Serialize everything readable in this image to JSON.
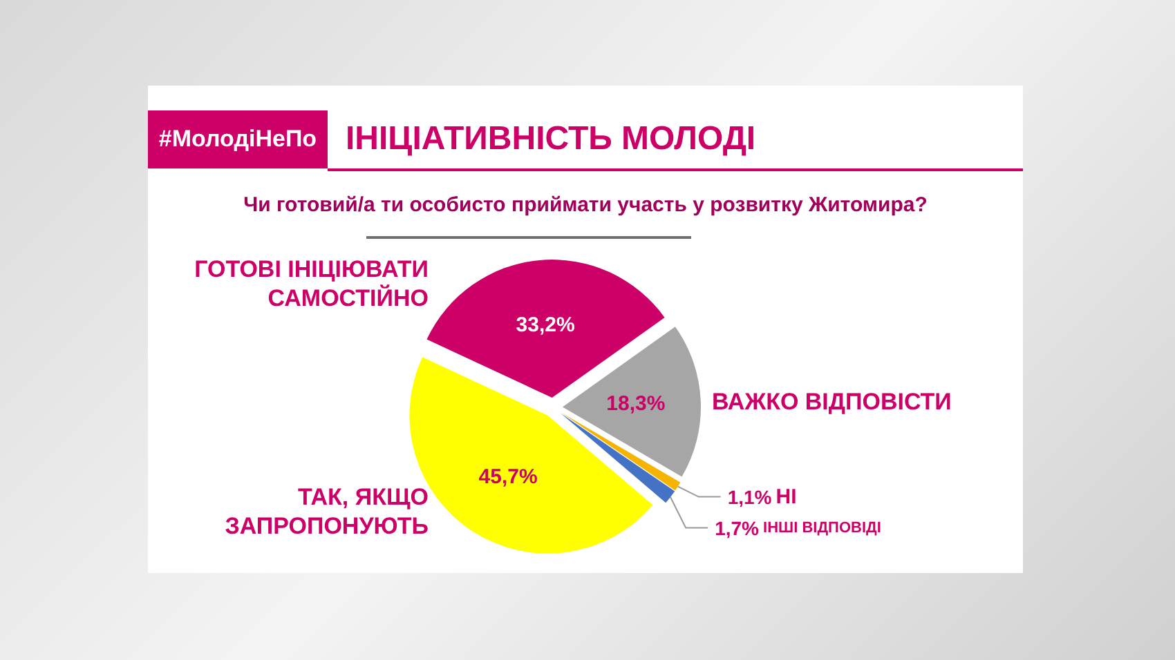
{
  "chart_data": {
    "type": "pie",
    "title": "ІНІЦІАТИВНІСТЬ МОЛОДІ",
    "subtitle": "Чи готовий/а ти особисто приймати участь у розвитку Житомира?",
    "annotations": [
      "#МолодіНеПо"
    ],
    "categories": [
      "ГОТОВІ ІНІЦІЮВАТИ САМОСТІЙНО",
      "ВАЖКО ВІДПОВІСТИ",
      "НІ",
      "ІНШІ ВІДПОВІДІ",
      "ТАК, ЯКЩО ЗАПРОПОНУЮТЬ"
    ],
    "values": [
      33.2,
      18.3,
      1.1,
      1.7,
      45.7
    ],
    "colors": [
      "#cc0066",
      "#a6a6a6",
      "#f5b400",
      "#4472c4",
      "#ffff00"
    ],
    "value_labels": [
      "33,2%",
      "18,3%",
      "1,1%",
      "1,7%",
      "45,7%"
    ],
    "legend": false
  }
}
